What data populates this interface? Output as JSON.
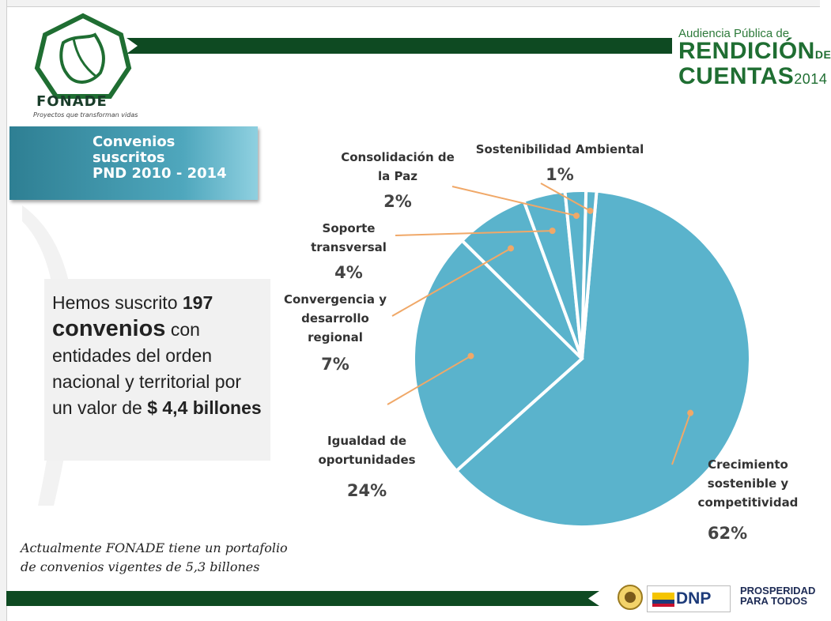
{
  "header": {
    "logo_name": "FONADE",
    "logo_tagline": "Proyectos que transforman vidas",
    "brand_line1": "Audiencia Pública de",
    "brand_line2a": "RENDICIÓN",
    "brand_line2b": "DE",
    "brand_line3a": "CUENTAS",
    "brand_line3b": "2014"
  },
  "banner": {
    "title": "Convenios\nsuscritos\nPND 2010 - 2014"
  },
  "statement": {
    "p1": "Hemos suscrito ",
    "b1": "197",
    "b2": "convenios",
    "p2": " con entidades del orden nacional y territorial por un valor de ",
    "b3": "$ 4,4 billones"
  },
  "note": {
    "line1": "Actualmente FONADE tiene un portafolio",
    "line2": "de convenios vigentes de 5,3 billones"
  },
  "footer": {
    "dnp": "DNP",
    "prosperidad_1": "PROSPERIDAD",
    "prosperidad_2": "PARA TODOS"
  },
  "colors": {
    "pie_fill": "#5ab3cc",
    "leader": "#f0a868",
    "dark_green": "#0e4a22"
  },
  "chart_data": {
    "type": "pie",
    "categories": [
      "Crecimiento sostenible y competitividad",
      "Igualdad de oportunidades",
      "Convergencia y desarrollo regional",
      "Soporte transversal",
      "Consolidación de la Paz",
      "Sostenibilidad Ambiental"
    ],
    "values": [
      62,
      24,
      7,
      4,
      2,
      1
    ],
    "value_labels": [
      "62%",
      "24%",
      "7%",
      "4%",
      "2%",
      "1%"
    ],
    "label_lines": [
      [
        "Crecimiento",
        "sostenible y",
        "competitividad"
      ],
      [
        "Igualdad de",
        "oportunidades"
      ],
      [
        "Convergencia y",
        "desarrollo",
        "regional"
      ],
      [
        "Soporte",
        "transversal"
      ],
      [
        "Consolidación de",
        "la Paz"
      ],
      [
        "Sostenibilidad Ambiental"
      ]
    ],
    "legend": "none"
  }
}
